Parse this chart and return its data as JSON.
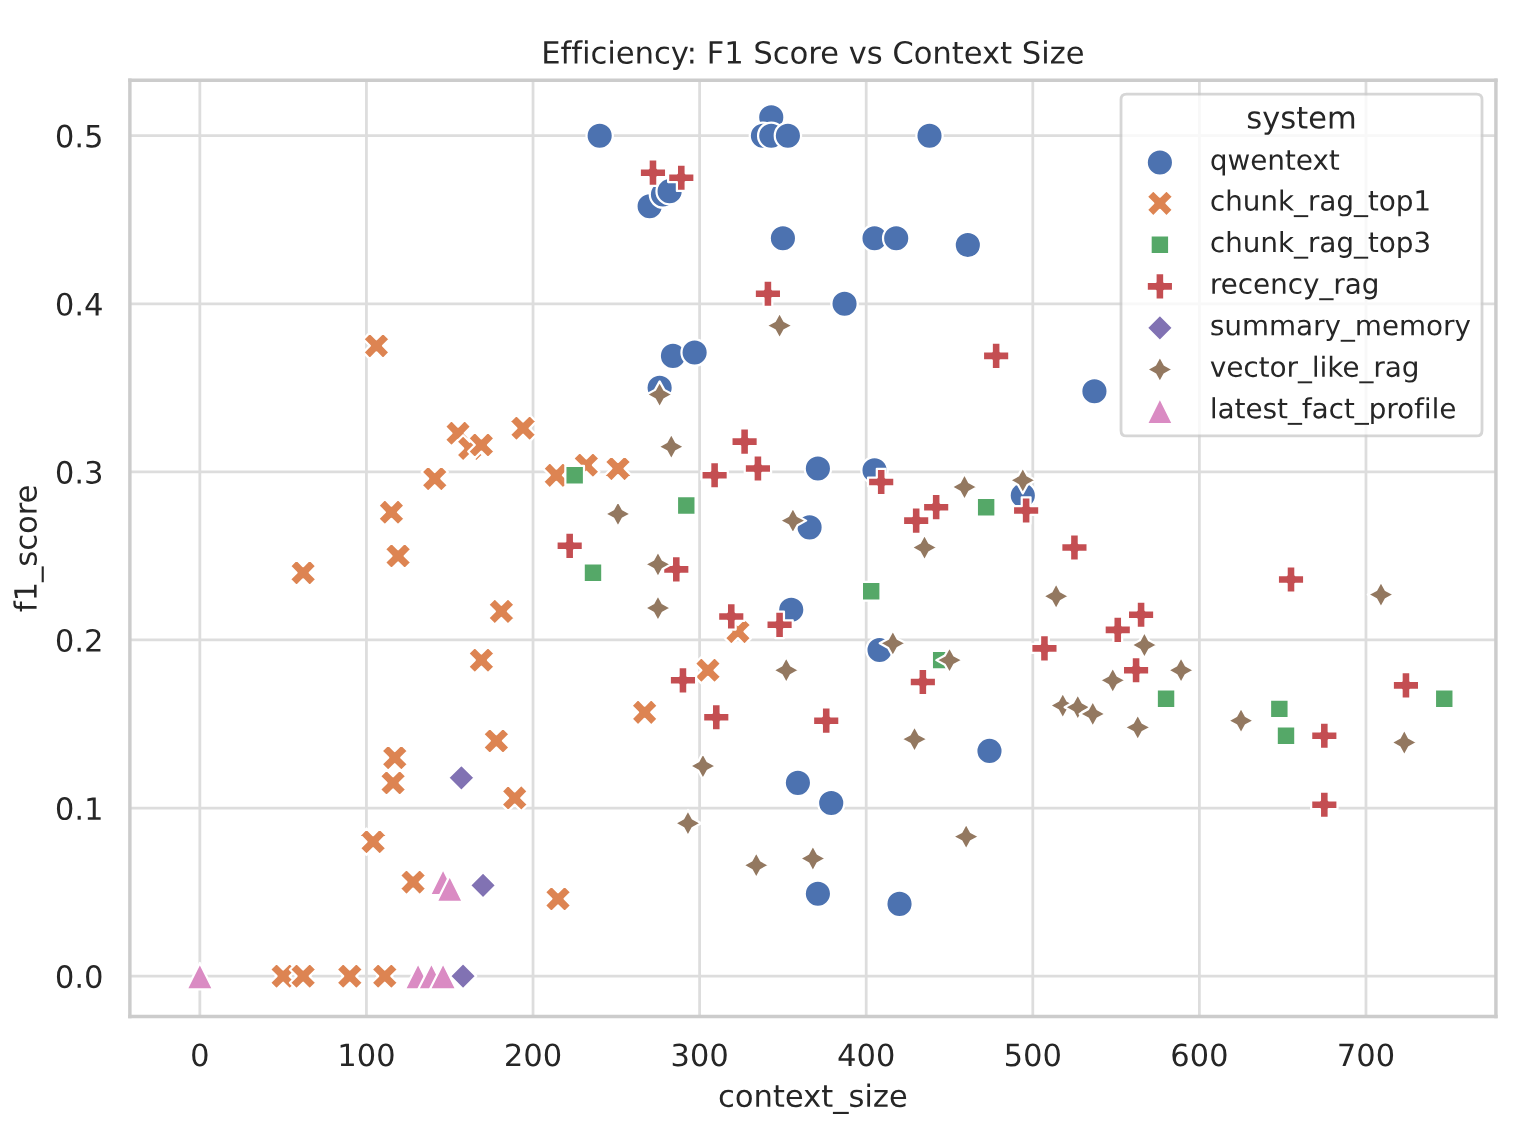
{
  "chart_data": {
    "type": "scatter",
    "title": "Efficiency: F1 Score vs Context Size",
    "xlabel": "context_size",
    "ylabel": "f1_score",
    "legend_title": "system",
    "legend": "top right",
    "grid": true,
    "xlim": [
      -42,
      778
    ],
    "ylim": [
      -0.024,
      0.533
    ],
    "xticks": [
      0,
      100,
      200,
      300,
      400,
      500,
      600,
      700
    ],
    "yticks": [
      {
        "value": 0,
        "label": "0.0"
      },
      {
        "value": 0.1,
        "label": "0.1"
      },
      {
        "value": 0.2,
        "label": "0.2"
      },
      {
        "value": 0.3,
        "label": "0.3"
      },
      {
        "value": 0.4,
        "label": "0.4"
      },
      {
        "value": 0.5,
        "label": "0.5"
      }
    ],
    "series": [
      {
        "name": "qwentext",
        "color": "#4c72b0",
        "marker": "circle",
        "x": [
          240,
          343,
          338,
          343,
          353,
          438,
          270,
          278,
          282,
          350,
          405,
          418,
          461,
          387,
          284,
          297,
          276,
          537,
          371,
          405,
          494,
          366,
          355,
          408,
          474,
          359,
          379,
          371,
          420
        ],
        "values": [
          0.5,
          0.511,
          0.5,
          0.5,
          0.5,
          0.5,
          0.458,
          0.465,
          0.467,
          0.439,
          0.439,
          0.439,
          0.435,
          0.4,
          0.369,
          0.371,
          0.35,
          0.348,
          0.302,
          0.301,
          0.286,
          0.267,
          0.218,
          0.194,
          0.134,
          0.115,
          0.103,
          0.049,
          0.043
        ]
      },
      {
        "name": "chunk_rag_top1",
        "color": "#dd8452",
        "marker": "x",
        "x": [
          106,
          155,
          162,
          169,
          194,
          141,
          115,
          214,
          232,
          251,
          62,
          119,
          181,
          169,
          178,
          117,
          116,
          189,
          104,
          128,
          215,
          50,
          62,
          90,
          111,
          323,
          305,
          267
        ],
        "values": [
          0.375,
          0.323,
          0.314,
          0.316,
          0.326,
          0.296,
          0.276,
          0.298,
          0.304,
          0.302,
          0.24,
          0.25,
          0.217,
          0.188,
          0.14,
          0.13,
          0.115,
          0.106,
          0.08,
          0.056,
          0.046,
          0,
          0,
          0,
          0,
          0.205,
          0.182,
          0.157
        ]
      },
      {
        "name": "chunk_rag_top3",
        "color": "#55a868",
        "marker": "square",
        "x": [
          225,
          236,
          292,
          472,
          403,
          445,
          580,
          648,
          652,
          747
        ],
        "values": [
          0.298,
          0.24,
          0.28,
          0.279,
          0.229,
          0.188,
          0.165,
          0.159,
          0.143,
          0.165
        ]
      },
      {
        "name": "recency_rag",
        "color": "#c44e52",
        "marker": "cross",
        "x": [
          272,
          289,
          341,
          478,
          327,
          309,
          335,
          409,
          442,
          430,
          496,
          222,
          286,
          319,
          348,
          290,
          310,
          376,
          434,
          525,
          507,
          551,
          565,
          562,
          655,
          724,
          675,
          675
        ],
        "values": [
          0.478,
          0.475,
          0.406,
          0.369,
          0.318,
          0.298,
          0.302,
          0.294,
          0.279,
          0.271,
          0.277,
          0.256,
          0.242,
          0.214,
          0.209,
          0.176,
          0.154,
          0.152,
          0.175,
          0.255,
          0.195,
          0.206,
          0.215,
          0.182,
          0.236,
          0.173,
          0.143,
          0.102
        ]
      },
      {
        "name": "summary_memory",
        "color": "#8172b3",
        "marker": "diamond",
        "x": [
          157,
          170,
          158
        ],
        "values": [
          0.118,
          0.054,
          0
        ]
      },
      {
        "name": "vector_like_rag",
        "color": "#937860",
        "marker": "star",
        "x": [
          348,
          276,
          283,
          251,
          356,
          459,
          494,
          275,
          275,
          352,
          435,
          416,
          450,
          429,
          302,
          293,
          334,
          368,
          460,
          514,
          518,
          527,
          536,
          567,
          548,
          589,
          563,
          625,
          709,
          723
        ],
        "values": [
          0.387,
          0.346,
          0.315,
          0.275,
          0.271,
          0.291,
          0.295,
          0.245,
          0.219,
          0.182,
          0.255,
          0.198,
          0.188,
          0.141,
          0.125,
          0.091,
          0.066,
          0.07,
          0.083,
          0.226,
          0.161,
          0.16,
          0.156,
          0.197,
          0.176,
          0.182,
          0.148,
          0.152,
          0.227,
          0.139
        ]
      },
      {
        "name": "latest_fact_profile",
        "color": "#da8bc3",
        "marker": "triangle",
        "x": [
          0,
          131,
          139,
          146,
          146,
          150
        ],
        "values": [
          0,
          0,
          0,
          0,
          0.056,
          0.052
        ]
      }
    ]
  }
}
